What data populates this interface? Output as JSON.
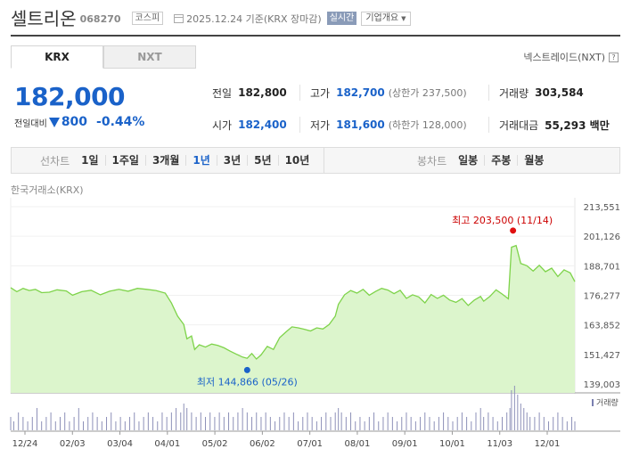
{
  "header": {
    "company_name": "셀트리온",
    "stock_code": "068270",
    "market": "코스피",
    "date_text": "2025.12.24  기준(KRX 장마감)",
    "realtime_badge": "실시간",
    "overview_button": "기업개요"
  },
  "tabs": [
    {
      "label": "KRX",
      "active": true
    },
    {
      "label": "NXT",
      "active": false
    }
  ],
  "nxt_link": "넥스트레이드(NXT)",
  "quote": {
    "price": "182,000",
    "change_label": "전일대비",
    "change_value": "800",
    "change_pct": "-0.44%",
    "direction": "down"
  },
  "info": {
    "prev_close": {
      "label": "전일",
      "value": "182,800"
    },
    "high": {
      "label": "고가",
      "value": "182,700",
      "sub": "(상한가 237,500)"
    },
    "volume": {
      "label": "거래량",
      "value": "303,584"
    },
    "open": {
      "label": "시가",
      "value": "182,400"
    },
    "low": {
      "label": "저가",
      "value": "181,600",
      "sub": "(하한가 128,000)"
    },
    "trade_value": {
      "label": "거래대금",
      "value": "55,293 백만"
    }
  },
  "periods": {
    "line_label": "선차트",
    "line_items": [
      {
        "label": "1일",
        "active": false
      },
      {
        "label": "1주일",
        "active": false
      },
      {
        "label": "3개월",
        "active": false
      },
      {
        "label": "1년",
        "active": true
      },
      {
        "label": "3년",
        "active": false
      },
      {
        "label": "5년",
        "active": false
      },
      {
        "label": "10년",
        "active": false
      }
    ],
    "candle_label": "봉차트",
    "candle_items": [
      {
        "label": "일봉"
      },
      {
        "label": "주봉"
      },
      {
        "label": "월봉"
      }
    ]
  },
  "exchange_label": "한국거래소(KRX)",
  "chart_data": {
    "type": "area",
    "ylim": [
      139003,
      213551
    ],
    "y_ticks": [
      "213,551",
      "201,126",
      "188,701",
      "176,277",
      "163,852",
      "151,427",
      "139,003"
    ],
    "x_tick_labels": [
      "12/24",
      "02/03",
      "03/04",
      "04/01",
      "05/02",
      "06/02",
      "07/01",
      "08/01",
      "09/01",
      "10/01",
      "11/03",
      "12/01"
    ],
    "high_annotation": {
      "text": "최고 203,500 (11/14)",
      "value": 203500,
      "day": 325
    },
    "low_annotation": {
      "text": "최저 144,866 (05/26)",
      "value": 144866,
      "day": 153
    },
    "volume_label": "거래량",
    "line_color": "#7ed34a",
    "area_color": "#dcf5cc",
    "price_series": [
      [
        0,
        179500
      ],
      [
        4,
        177800
      ],
      [
        8,
        179200
      ],
      [
        12,
        178300
      ],
      [
        16,
        178800
      ],
      [
        20,
        177400
      ],
      [
        25,
        177600
      ],
      [
        30,
        178600
      ],
      [
        36,
        178100
      ],
      [
        40,
        176300
      ],
      [
        46,
        177800
      ],
      [
        52,
        178400
      ],
      [
        58,
        176500
      ],
      [
        64,
        178000
      ],
      [
        70,
        178800
      ],
      [
        76,
        178000
      ],
      [
        82,
        179200
      ],
      [
        88,
        178800
      ],
      [
        94,
        178300
      ],
      [
        100,
        177200
      ],
      [
        104,
        173000
      ],
      [
        108,
        167500
      ],
      [
        112,
        164000
      ],
      [
        114,
        158000
      ],
      [
        117,
        159200
      ],
      [
        119,
        153500
      ],
      [
        122,
        155500
      ],
      [
        126,
        154500
      ],
      [
        130,
        155800
      ],
      [
        134,
        155200
      ],
      [
        138,
        154200
      ],
      [
        142,
        152800
      ],
      [
        146,
        151500
      ],
      [
        150,
        150300
      ],
      [
        153,
        149800
      ],
      [
        156,
        151800
      ],
      [
        159,
        149500
      ],
      [
        162,
        151200
      ],
      [
        166,
        154800
      ],
      [
        170,
        153500
      ],
      [
        174,
        158500
      ],
      [
        178,
        160800
      ],
      [
        182,
        163000
      ],
      [
        186,
        162600
      ],
      [
        190,
        162000
      ],
      [
        194,
        161300
      ],
      [
        198,
        162600
      ],
      [
        202,
        162100
      ],
      [
        206,
        164000
      ],
      [
        210,
        167500
      ],
      [
        212,
        172500
      ],
      [
        216,
        176500
      ],
      [
        220,
        178300
      ],
      [
        224,
        177200
      ],
      [
        228,
        178800
      ],
      [
        232,
        176300
      ],
      [
        236,
        177900
      ],
      [
        240,
        179200
      ],
      [
        244,
        178500
      ],
      [
        248,
        177000
      ],
      [
        252,
        178400
      ],
      [
        256,
        175000
      ],
      [
        260,
        176500
      ],
      [
        264,
        175600
      ],
      [
        268,
        173100
      ],
      [
        272,
        176600
      ],
      [
        276,
        175000
      ],
      [
        280,
        176300
      ],
      [
        284,
        174300
      ],
      [
        288,
        173300
      ],
      [
        292,
        174900
      ],
      [
        296,
        172000
      ],
      [
        300,
        174300
      ],
      [
        304,
        175800
      ],
      [
        306,
        173800
      ],
      [
        310,
        175800
      ],
      [
        314,
        178600
      ],
      [
        318,
        176800
      ],
      [
        322,
        174800
      ],
      [
        324,
        196500
      ],
      [
        327,
        197200
      ],
      [
        330,
        189700
      ],
      [
        334,
        188700
      ],
      [
        338,
        186500
      ],
      [
        342,
        188900
      ],
      [
        346,
        186200
      ],
      [
        350,
        187700
      ],
      [
        354,
        184200
      ],
      [
        358,
        187000
      ],
      [
        362,
        185700
      ],
      [
        365,
        182000
      ]
    ],
    "volume_series": [
      [
        0,
        3
      ],
      [
        2,
        2
      ],
      [
        5,
        4
      ],
      [
        8,
        3
      ],
      [
        11,
        2
      ],
      [
        14,
        3
      ],
      [
        17,
        5
      ],
      [
        20,
        2
      ],
      [
        23,
        3
      ],
      [
        26,
        4
      ],
      [
        29,
        2
      ],
      [
        32,
        3
      ],
      [
        35,
        4
      ],
      [
        38,
        2
      ],
      [
        41,
        3
      ],
      [
        44,
        5
      ],
      [
        47,
        2
      ],
      [
        50,
        3
      ],
      [
        53,
        4
      ],
      [
        56,
        3
      ],
      [
        59,
        2
      ],
      [
        62,
        3
      ],
      [
        65,
        4
      ],
      [
        68,
        2
      ],
      [
        71,
        3
      ],
      [
        74,
        2
      ],
      [
        77,
        3
      ],
      [
        80,
        4
      ],
      [
        83,
        2
      ],
      [
        86,
        3
      ],
      [
        89,
        4
      ],
      [
        92,
        3
      ],
      [
        95,
        2
      ],
      [
        98,
        4
      ],
      [
        101,
        3
      ],
      [
        104,
        4
      ],
      [
        107,
        5
      ],
      [
        110,
        4
      ],
      [
        112,
        6
      ],
      [
        114,
        5
      ],
      [
        117,
        4
      ],
      [
        120,
        3
      ],
      [
        123,
        4
      ],
      [
        126,
        3
      ],
      [
        129,
        4
      ],
      [
        132,
        3
      ],
      [
        135,
        4
      ],
      [
        138,
        3
      ],
      [
        141,
        4
      ],
      [
        144,
        3
      ],
      [
        147,
        4
      ],
      [
        150,
        5
      ],
      [
        153,
        4
      ],
      [
        156,
        3
      ],
      [
        159,
        4
      ],
      [
        162,
        3
      ],
      [
        165,
        4
      ],
      [
        168,
        3
      ],
      [
        171,
        2
      ],
      [
        174,
        3
      ],
      [
        177,
        4
      ],
      [
        180,
        3
      ],
      [
        183,
        4
      ],
      [
        186,
        2
      ],
      [
        189,
        3
      ],
      [
        192,
        4
      ],
      [
        195,
        3
      ],
      [
        198,
        2
      ],
      [
        201,
        3
      ],
      [
        204,
        4
      ],
      [
        207,
        3
      ],
      [
        210,
        4
      ],
      [
        212,
        5
      ],
      [
        214,
        4
      ],
      [
        217,
        3
      ],
      [
        220,
        4
      ],
      [
        223,
        2
      ],
      [
        226,
        3
      ],
      [
        229,
        2
      ],
      [
        232,
        3
      ],
      [
        235,
        4
      ],
      [
        238,
        2
      ],
      [
        241,
        3
      ],
      [
        244,
        4
      ],
      [
        247,
        3
      ],
      [
        250,
        2
      ],
      [
        253,
        3
      ],
      [
        256,
        4
      ],
      [
        259,
        3
      ],
      [
        262,
        2
      ],
      [
        265,
        3
      ],
      [
        268,
        4
      ],
      [
        271,
        3
      ],
      [
        274,
        2
      ],
      [
        277,
        3
      ],
      [
        280,
        4
      ],
      [
        283,
        3
      ],
      [
        286,
        2
      ],
      [
        289,
        3
      ],
      [
        292,
        4
      ],
      [
        295,
        3
      ],
      [
        298,
        2
      ],
      [
        301,
        4
      ],
      [
        304,
        5
      ],
      [
        306,
        3
      ],
      [
        309,
        4
      ],
      [
        312,
        3
      ],
      [
        315,
        2
      ],
      [
        318,
        3
      ],
      [
        321,
        4
      ],
      [
        323,
        5
      ],
      [
        324,
        9
      ],
      [
        326,
        10
      ],
      [
        328,
        8
      ],
      [
        330,
        6
      ],
      [
        332,
        5
      ],
      [
        334,
        4
      ],
      [
        336,
        3
      ],
      [
        339,
        3
      ],
      [
        342,
        4
      ],
      [
        345,
        3
      ],
      [
        348,
        2
      ],
      [
        351,
        3
      ],
      [
        354,
        4
      ],
      [
        357,
        3
      ],
      [
        360,
        2
      ],
      [
        363,
        3
      ],
      [
        365,
        2
      ]
    ]
  }
}
